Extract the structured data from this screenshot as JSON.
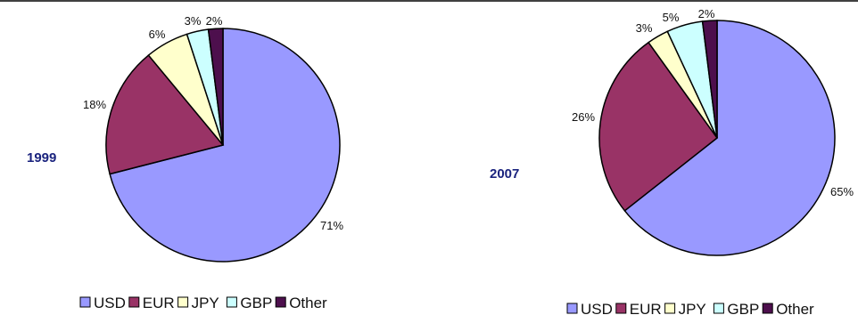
{
  "chart_data": [
    {
      "type": "pie",
      "title": "1999",
      "categories": [
        "USD",
        "EUR",
        "JPY",
        "GBP",
        "Other"
      ],
      "values": [
        71,
        18,
        6,
        3,
        2
      ],
      "labels": [
        "71%",
        "18%",
        "6%",
        "3%",
        "2%"
      ],
      "colors": [
        "#9999ff",
        "#993366",
        "#ffffcc",
        "#ccffff",
        "#4d0f4d"
      ],
      "legend_position": "bottom"
    },
    {
      "type": "pie",
      "title": "2007",
      "categories": [
        "USD",
        "EUR",
        "JPY",
        "GBP",
        "Other"
      ],
      "values": [
        65,
        26,
        3,
        5,
        2
      ],
      "labels": [
        "65%",
        "26%",
        "3%",
        "5%",
        "2%"
      ],
      "colors": [
        "#9999ff",
        "#993366",
        "#ffffcc",
        "#ccffff",
        "#4d0f4d"
      ],
      "legend_position": "bottom"
    }
  ]
}
